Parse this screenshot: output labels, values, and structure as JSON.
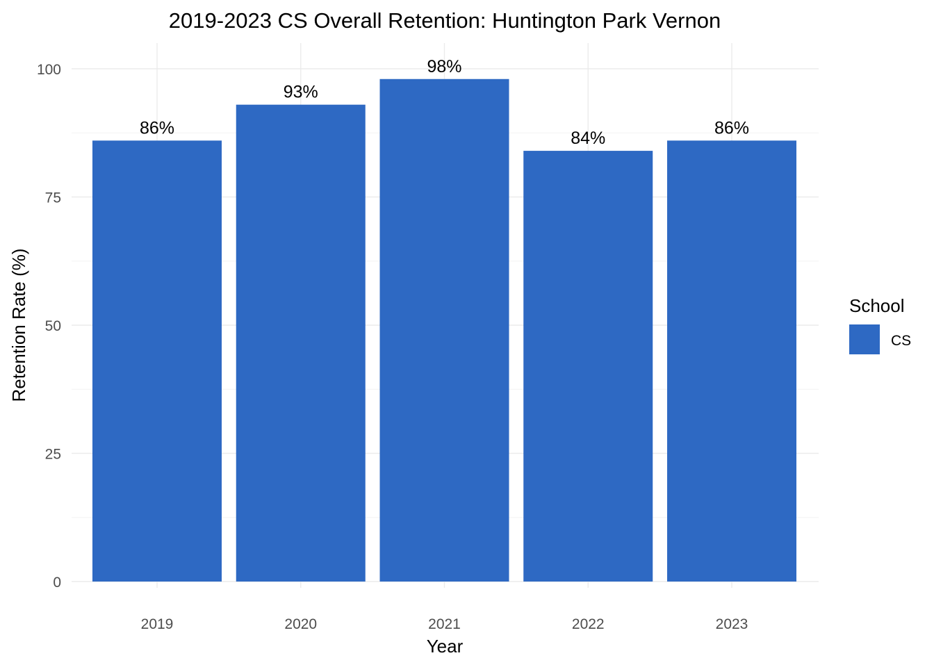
{
  "chart_data": {
    "type": "bar",
    "title": "2019-2023 CS Overall Retention: Huntington Park Vernon",
    "xlabel": "Year",
    "ylabel": "Retention Rate (%)",
    "categories": [
      "2019",
      "2020",
      "2021",
      "2022",
      "2023"
    ],
    "series": [
      {
        "name": "CS",
        "values": [
          86,
          93,
          98,
          84,
          86
        ],
        "labels": [
          "86%",
          "93%",
          "98%",
          "84%",
          "86%"
        ],
        "color": "#2e69c3"
      }
    ],
    "ylim": [
      0,
      100
    ],
    "y_ticks": [
      0,
      25,
      50,
      75,
      100
    ],
    "y_tick_labels": [
      "0",
      "25",
      "50",
      "75",
      "100"
    ],
    "grid": true,
    "legend": {
      "title": "School",
      "position": "right",
      "entries": [
        "CS"
      ]
    }
  }
}
